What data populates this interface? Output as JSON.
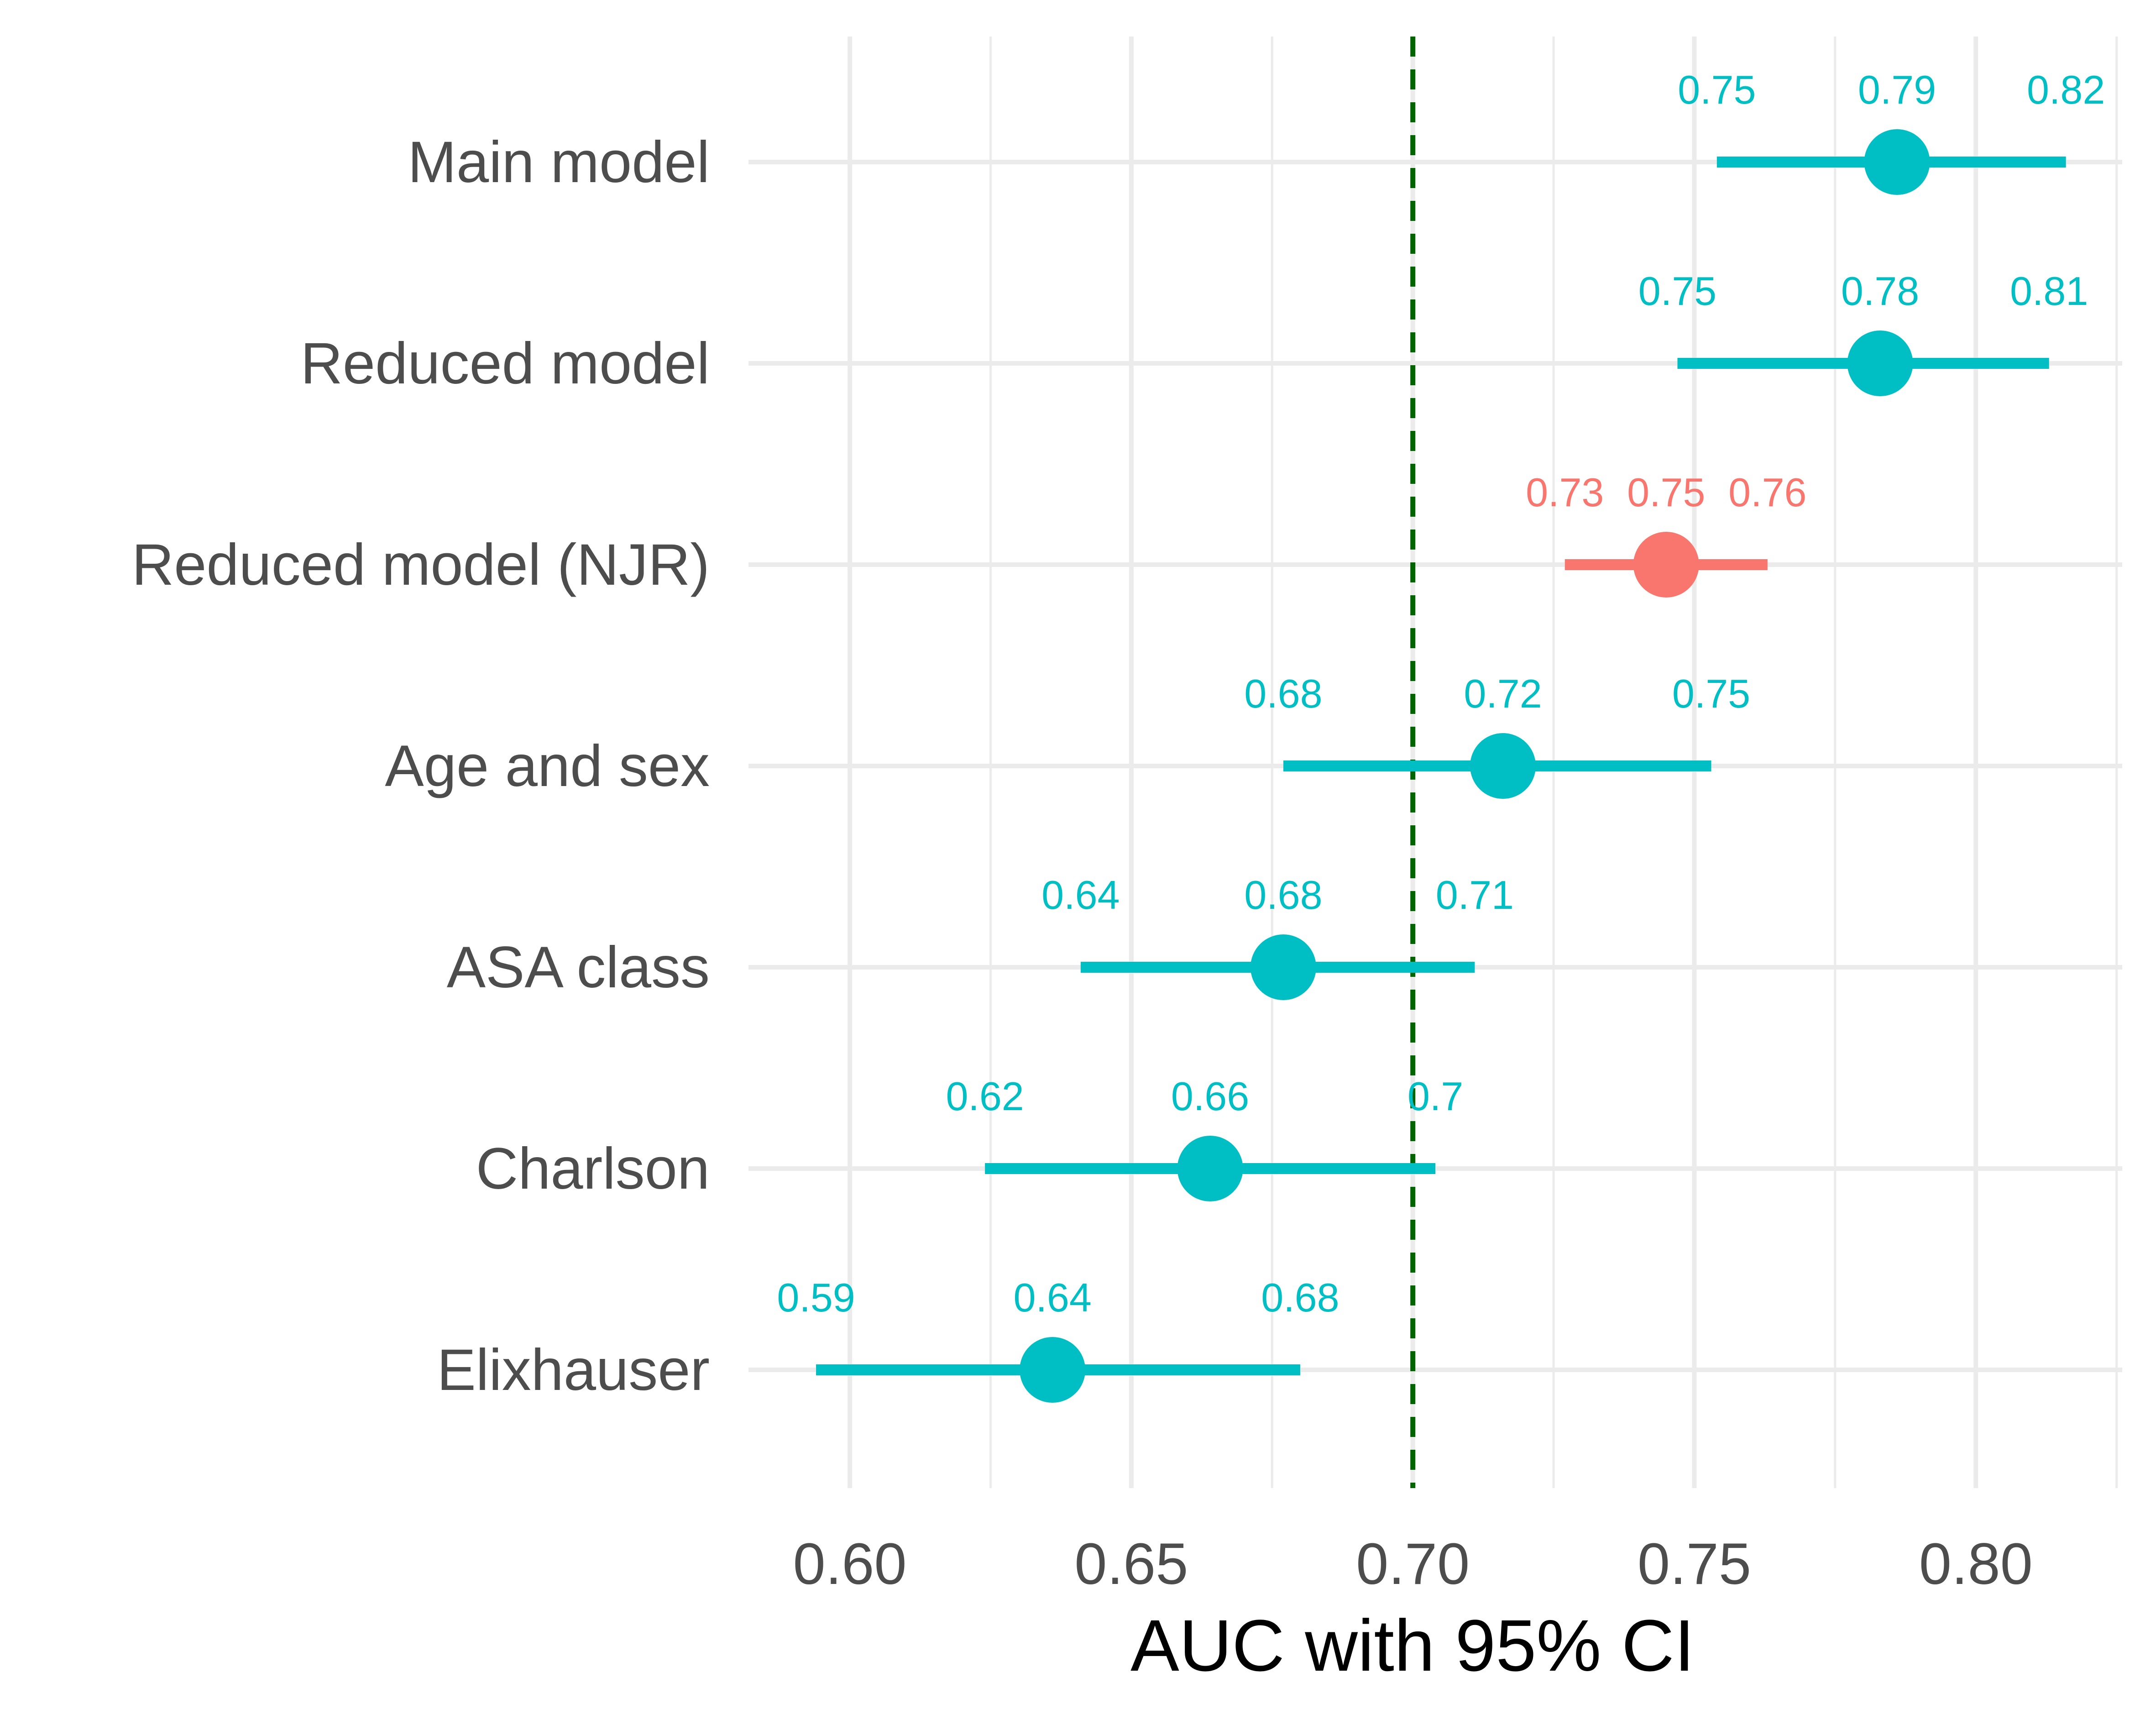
{
  "chart_data": {
    "type": "forest",
    "xlabel": "AUC with 95% CI",
    "ylabel": "",
    "xlim": [
      0.582,
      0.826
    ],
    "x_ticks": [
      0.6,
      0.65,
      0.7,
      0.75,
      0.8
    ],
    "x_tick_labels": [
      "0.60",
      "0.65",
      "0.70",
      "0.75",
      "0.80"
    ],
    "reference_line": {
      "x": 0.7,
      "style": "dashed",
      "color": "#006400"
    },
    "grid": true,
    "legend": "none",
    "colors": {
      "default": "#00BFC4",
      "highlight": "#F8766D",
      "grid": "#ebebeb"
    },
    "rows": [
      {
        "label": "Main model",
        "estimate": 0.786,
        "lower": 0.754,
        "upper": 0.816,
        "estimate_label": "0.79",
        "lower_label": "0.75",
        "upper_label": "0.82",
        "group": "default"
      },
      {
        "label": "Reduced model",
        "estimate": 0.783,
        "lower": 0.747,
        "upper": 0.813,
        "estimate_label": "0.78",
        "lower_label": "0.75",
        "upper_label": "0.81",
        "group": "default"
      },
      {
        "label": "Reduced model (NJR)",
        "estimate": 0.745,
        "lower": 0.727,
        "upper": 0.763,
        "estimate_label": "0.75",
        "lower_label": "0.73",
        "upper_label": "0.76",
        "group": "highlight"
      },
      {
        "label": "Age and sex",
        "estimate": 0.716,
        "lower": 0.677,
        "upper": 0.753,
        "estimate_label": "0.72",
        "lower_label": "0.68",
        "upper_label": "0.75",
        "group": "default"
      },
      {
        "label": "ASA class",
        "estimate": 0.677,
        "lower": 0.641,
        "upper": 0.711,
        "estimate_label": "0.68",
        "lower_label": "0.64",
        "upper_label": "0.71",
        "group": "default"
      },
      {
        "label": "Charlson",
        "estimate": 0.664,
        "lower": 0.624,
        "upper": 0.704,
        "estimate_label": "0.66",
        "lower_label": "0.62",
        "upper_label": "0.7",
        "group": "default"
      },
      {
        "label": "Elixhauser",
        "estimate": 0.636,
        "lower": 0.594,
        "upper": 0.68,
        "estimate_label": "0.64",
        "lower_label": "0.59",
        "upper_label": "0.68",
        "group": "default"
      }
    ]
  }
}
